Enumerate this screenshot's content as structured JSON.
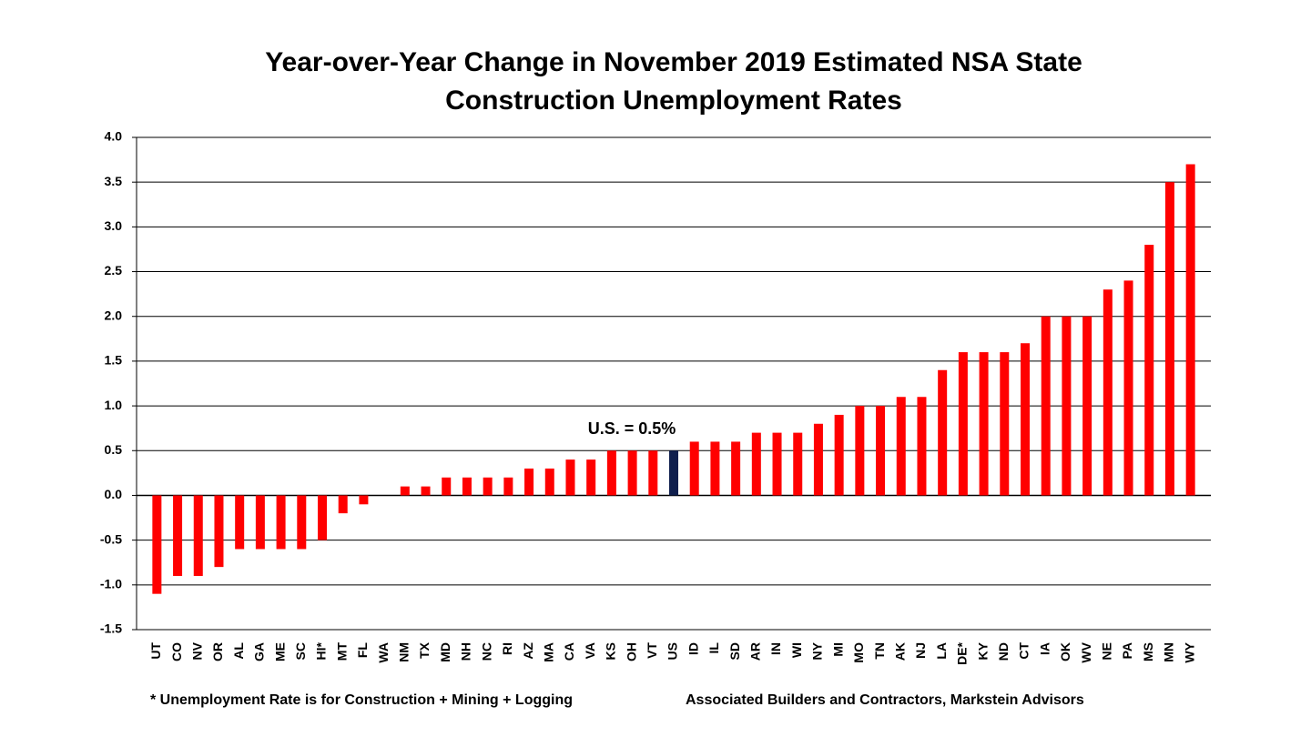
{
  "chart_data": {
    "type": "bar",
    "title": "Year-over-Year Change in November 2019 Estimated NSA State Construction Unemployment Rates",
    "categories": [
      "UT",
      "CO",
      "NV",
      "OR",
      "AL",
      "GA",
      "ME",
      "SC",
      "HI*",
      "MT",
      "FL",
      "WA",
      "NM",
      "TX",
      "MD",
      "NH",
      "NC",
      "RI",
      "AZ",
      "MA",
      "CA",
      "VA",
      "KS",
      "OH",
      "VT",
      "US",
      "ID",
      "IL",
      "SD",
      "AR",
      "IN",
      "WI",
      "NY",
      "MI",
      "MO",
      "TN",
      "AK",
      "NJ",
      "LA",
      "DE*",
      "KY",
      "ND",
      "CT",
      "IA",
      "OK",
      "WV",
      "NE",
      "PA",
      "MS",
      "MN",
      "WY"
    ],
    "values": [
      -1.1,
      -0.9,
      -0.9,
      -0.8,
      -0.6,
      -0.6,
      -0.6,
      -0.6,
      -0.5,
      -0.2,
      -0.1,
      0,
      0.1,
      0.1,
      0.2,
      0.2,
      0.2,
      0.2,
      0.3,
      0.3,
      0.4,
      0.4,
      0.5,
      0.5,
      0.5,
      0.5,
      0.6,
      0.6,
      0.6,
      0.7,
      0.7,
      0.7,
      0.8,
      0.9,
      1.0,
      1.0,
      1.1,
      1.1,
      1.4,
      1.6,
      1.6,
      1.6,
      1.7,
      2.0,
      2.0,
      2.0,
      2.3,
      2.4,
      2.8,
      3.5,
      3.7
    ],
    "colors": [
      "#ff0000",
      "#ff0000",
      "#ff0000",
      "#ff0000",
      "#ff0000",
      "#ff0000",
      "#ff0000",
      "#ff0000",
      "#ff0000",
      "#ff0000",
      "#ff0000",
      "#ff0000",
      "#ff0000",
      "#ff0000",
      "#ff0000",
      "#ff0000",
      "#ff0000",
      "#ff0000",
      "#ff0000",
      "#ff0000",
      "#ff0000",
      "#ff0000",
      "#ff0000",
      "#ff0000",
      "#ff0000",
      "#0f1f4d",
      "#ff0000",
      "#ff0000",
      "#ff0000",
      "#ff0000",
      "#ff0000",
      "#ff0000",
      "#ff0000",
      "#ff0000",
      "#ff0000",
      "#ff0000",
      "#ff0000",
      "#ff0000",
      "#ff0000",
      "#ff0000",
      "#ff0000",
      "#ff0000",
      "#ff0000",
      "#ff0000",
      "#ff0000",
      "#ff0000",
      "#ff0000",
      "#ff0000",
      "#ff0000",
      "#ff0000",
      "#ff0000"
    ],
    "ylim": [
      -1.5,
      4.0
    ],
    "yticks": [
      -1.5,
      {
        "value": -1.0,
        "label": "-1.0"
      },
      -0.5,
      {
        "value": 0,
        "label": "0.0"
      },
      0.5,
      {
        "value": 1.0,
        "label": "1.0"
      },
      1.5,
      {
        "value": 2.0,
        "label": "2.0"
      },
      2.5,
      {
        "value": 3.0,
        "label": "3.0"
      },
      3.5,
      {
        "value": 4.0,
        "label": "4.0"
      }
    ],
    "grid": true,
    "annotation": "U.S. = 0.5%",
    "footnote": "* Unemployment Rate is for Construction + Mining + Logging",
    "source": "Associated Builders and Contractors, Markstein Advisors"
  }
}
